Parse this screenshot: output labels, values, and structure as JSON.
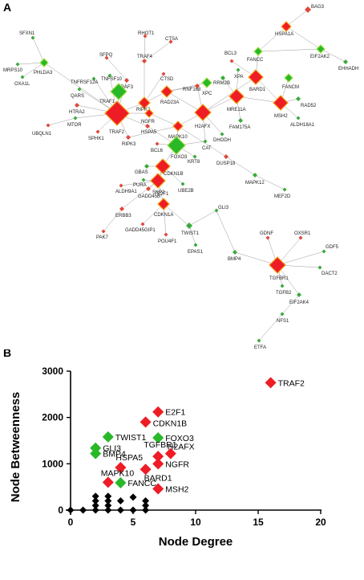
{
  "panels": {
    "a_letter": "A",
    "b_letter": "B"
  },
  "colors": {
    "red": "#ee1c25",
    "green": "#28b828",
    "black": "#000000",
    "red_border": "#f6a21a",
    "green_border": "#a6e34c",
    "small_red": "#e0463a",
    "small_green": "#3aaa3a",
    "edge": "#9a9a9a"
  },
  "network": {
    "nodes": [
      {
        "id": "BAG3",
        "color": "red"
      },
      {
        "id": "HSPA1A",
        "color": "red"
      },
      {
        "id": "EIF2AK2",
        "color": "green"
      },
      {
        "id": "EHHADH",
        "color": "green"
      },
      {
        "id": "SFXN1",
        "color": "green"
      },
      {
        "id": "MRPS10",
        "color": "green"
      },
      {
        "id": "PHLDA3",
        "color": "green"
      },
      {
        "id": "OXA1L",
        "color": "green"
      },
      {
        "id": "RHOT1",
        "color": "red"
      },
      {
        "id": "CTSA",
        "color": "red"
      },
      {
        "id": "TRAF4",
        "color": "red"
      },
      {
        "id": "CTSD",
        "color": "red"
      },
      {
        "id": "SFPQ",
        "color": "red"
      },
      {
        "id": "TNFSF10",
        "color": "green"
      },
      {
        "id": "TNFRSF12A",
        "color": "green"
      },
      {
        "id": "QARS",
        "color": "green"
      },
      {
        "id": "TRAF3",
        "color": "red"
      },
      {
        "id": "TRAF1",
        "color": "green"
      },
      {
        "id": "RIPK2",
        "color": "red"
      },
      {
        "id": "RAD23A",
        "color": "red"
      },
      {
        "id": "RNF168",
        "color": "red"
      },
      {
        "id": "BCL3",
        "color": "red"
      },
      {
        "id": "FANCC",
        "color": "green"
      },
      {
        "id": "XPA",
        "color": "green"
      },
      {
        "id": "RRM2B",
        "color": "green"
      },
      {
        "id": "XPC",
        "color": "green"
      },
      {
        "id": "BARD1",
        "color": "red"
      },
      {
        "id": "FANCM",
        "color": "green"
      },
      {
        "id": "MSH2",
        "color": "red"
      },
      {
        "id": "RAD52",
        "color": "green"
      },
      {
        "id": "MRE11A",
        "color": "red"
      },
      {
        "id": "ALDH18A1",
        "color": "green"
      },
      {
        "id": "FAM175A",
        "color": "green"
      },
      {
        "id": "HTRA2",
        "color": "red"
      },
      {
        "id": "MTOR",
        "color": "green"
      },
      {
        "id": "UBQLN1",
        "color": "red"
      },
      {
        "id": "TRAF2",
        "color": "red"
      },
      {
        "id": "NGFR",
        "color": "red"
      },
      {
        "id": "H2AFX",
        "color": "red"
      },
      {
        "id": "SPHK1",
        "color": "red"
      },
      {
        "id": "HSPA5",
        "color": "red"
      },
      {
        "id": "RIPK3",
        "color": "red"
      },
      {
        "id": "MAPK10",
        "color": "red"
      },
      {
        "id": "DHODH",
        "color": "green"
      },
      {
        "id": "CAT",
        "color": "green"
      },
      {
        "id": "BCL6",
        "color": "red"
      },
      {
        "id": "FOXO3",
        "color": "green"
      },
      {
        "id": "KRT8",
        "color": "green"
      },
      {
        "id": "DUSP18",
        "color": "red"
      },
      {
        "id": "GBAS",
        "color": "green"
      },
      {
        "id": "CDKN1B",
        "color": "red"
      },
      {
        "id": "PURA",
        "color": "green"
      },
      {
        "id": "SKP2",
        "color": "red"
      },
      {
        "id": "UBE2B",
        "color": "green"
      },
      {
        "id": "MAPK12",
        "color": "green"
      },
      {
        "id": "ALDH9A1",
        "color": "red"
      },
      {
        "id": "GADD45B",
        "color": "red"
      },
      {
        "id": "E2F1",
        "color": "red"
      },
      {
        "id": "MEF2D",
        "color": "green"
      },
      {
        "id": "ERBB3",
        "color": "red"
      },
      {
        "id": "CDKN1A",
        "color": "red"
      },
      {
        "id": "GADD45GIP1",
        "color": "red"
      },
      {
        "id": "GLI3",
        "color": "green"
      },
      {
        "id": "TWIST1",
        "color": "green"
      },
      {
        "id": "PAK7",
        "color": "red"
      },
      {
        "id": "POU4F1",
        "color": "red"
      },
      {
        "id": "EPAS1",
        "color": "green"
      },
      {
        "id": "GDNF",
        "color": "red"
      },
      {
        "id": "OXSR1",
        "color": "red"
      },
      {
        "id": "BMP4",
        "color": "green"
      },
      {
        "id": "GDF5",
        "color": "green"
      },
      {
        "id": "DACT2",
        "color": "green"
      },
      {
        "id": "TGFBR1",
        "color": "red"
      },
      {
        "id": "TGFB2",
        "color": "green"
      },
      {
        "id": "EIF2AK4",
        "color": "green"
      },
      {
        "id": "NFS1",
        "color": "green"
      },
      {
        "id": "ETFA",
        "color": "green"
      }
    ],
    "edges": [
      [
        "BAG3",
        "HSPA1A"
      ],
      [
        "HSPA1A",
        "FANCC"
      ],
      [
        "HSPA1A",
        "EIF2AK2"
      ],
      [
        "EIF2AK2",
        "EHHADH"
      ],
      [
        "EIF2AK2",
        "FANCC"
      ],
      [
        "SFXN1",
        "PHLDA3"
      ],
      [
        "MRPS10",
        "PHLDA3"
      ],
      [
        "PHLDA3",
        "OXA1L"
      ],
      [
        "PHLDA3",
        "TRAF2"
      ],
      [
        "RHOT1",
        "TRAF4"
      ],
      [
        "CTSA",
        "TRAF4"
      ],
      [
        "TRAF4",
        "RIPK2"
      ],
      [
        "CTSD",
        "RIPK2"
      ],
      [
        "SFPQ",
        "TRAF3"
      ],
      [
        "TNFSF10",
        "TRAF2"
      ],
      [
        "TNFRSF12A",
        "TRAF2"
      ],
      [
        "QARS",
        "TRAF2"
      ],
      [
        "TRAF3",
        "TRAF2"
      ],
      [
        "TRAF1",
        "TRAF2"
      ],
      [
        "RIPK2",
        "TRAF2"
      ],
      [
        "RIPK2",
        "RAD23A"
      ],
      [
        "RAD23A",
        "RNF168"
      ],
      [
        "RAD23A",
        "H2AFX"
      ],
      [
        "RNF168",
        "H2AFX"
      ],
      [
        "BCL3",
        "BARD1"
      ],
      [
        "FANCC",
        "BARD1"
      ],
      [
        "XPA",
        "MRE11A"
      ],
      [
        "RRM2B",
        "MRE11A"
      ],
      [
        "XPC",
        "RAD23A"
      ],
      [
        "BARD1",
        "MSH2"
      ],
      [
        "BARD1",
        "H2AFX"
      ],
      [
        "FANCM",
        "MSH2"
      ],
      [
        "MSH2",
        "RAD52"
      ],
      [
        "MSH2",
        "MRE11A"
      ],
      [
        "MRE11A",
        "H2AFX"
      ],
      [
        "MSH2",
        "ALDH18A1"
      ],
      [
        "MRE11A",
        "FAM175A"
      ],
      [
        "H2AFX",
        "MAPK10"
      ],
      [
        "HTRA2",
        "TRAF2"
      ],
      [
        "MTOR",
        "TRAF2"
      ],
      [
        "UBQLN1",
        "MTOR"
      ],
      [
        "TRAF2",
        "NGFR"
      ],
      [
        "TRAF2",
        "SPHK1"
      ],
      [
        "TRAF2",
        "HSPA5"
      ],
      [
        "TRAF2",
        "RIPK3"
      ],
      [
        "NGFR",
        "MAPK10"
      ],
      [
        "HSPA5",
        "FOXO3"
      ],
      [
        "RIPK3",
        "MAPK10"
      ],
      [
        "MAPK10",
        "FOXO3"
      ],
      [
        "H2AFX",
        "DHODH"
      ],
      [
        "H2AFX",
        "CAT"
      ],
      [
        "FOXO3",
        "CAT"
      ],
      [
        "BCL6",
        "FOXO3"
      ],
      [
        "FOXO3",
        "KRT8"
      ],
      [
        "FOXO3",
        "CDKN1B"
      ],
      [
        "DUSP18",
        "MAPK12"
      ],
      [
        "MAPK10",
        "DUSP18"
      ],
      [
        "GBAS",
        "CDKN1B"
      ],
      [
        "CDKN1B",
        "SKP2"
      ],
      [
        "CDKN1B",
        "UBE2B"
      ],
      [
        "CDKN1B",
        "E2F1"
      ],
      [
        "PURA",
        "E2F1"
      ],
      [
        "ALDH9A1",
        "E2F1"
      ],
      [
        "MAPK12",
        "MEF2D"
      ],
      [
        "GADD45B",
        "E2F1"
      ],
      [
        "E2F1",
        "CDKN1A"
      ],
      [
        "E2F1",
        "ERBB3"
      ],
      [
        "CDKN1A",
        "GADD45GIP1"
      ],
      [
        "CDKN1A",
        "POU4F1"
      ],
      [
        "ERBB3",
        "PAK7"
      ],
      [
        "CDKN1A",
        "TWIST1"
      ],
      [
        "TWIST1",
        "EPAS1"
      ],
      [
        "TWIST1",
        "GLI3"
      ],
      [
        "GLI3",
        "BMP4"
      ],
      [
        "BMP4",
        "TGFBR1"
      ],
      [
        "GDNF",
        "TGFBR1"
      ],
      [
        "OXSR1",
        "TGFBR1"
      ],
      [
        "GDF5",
        "TGFBR1"
      ],
      [
        "DACT2",
        "TGFBR1"
      ],
      [
        "TGFBR1",
        "TGFB2"
      ],
      [
        "TGFBR1",
        "EIF2AK4"
      ],
      [
        "EIF2AK4",
        "NFS1"
      ],
      [
        "NFS1",
        "ETFA"
      ]
    ]
  },
  "scatter": {
    "x_axis_label": "Node Degree",
    "y_axis_label": "Node Betweenness",
    "x_ticks": [
      "0",
      "5",
      "10",
      "15",
      "20"
    ],
    "y_ticks": [
      "0",
      "1000",
      "2000",
      "3000"
    ]
  },
  "chart_data": {
    "type": "scatter",
    "xlabel": "Node Degree",
    "ylabel": "Node Betweenness",
    "xlim": [
      0,
      20
    ],
    "ylim": [
      0,
      3000
    ],
    "xticks": [
      0,
      5,
      10,
      15,
      20
    ],
    "yticks": [
      0,
      1000,
      2000,
      3000
    ],
    "labeled_points": [
      {
        "label": "TRAF2",
        "x": 16,
        "y": 2750,
        "color": "red"
      },
      {
        "label": "E2F1",
        "x": 7,
        "y": 2120,
        "color": "red"
      },
      {
        "label": "CDKN1B",
        "x": 6,
        "y": 1900,
        "color": "red"
      },
      {
        "label": "TWIST1",
        "x": 3,
        "y": 1580,
        "color": "green"
      },
      {
        "label": "FOXO3",
        "x": 7,
        "y": 1560,
        "color": "green"
      },
      {
        "label": "GLI3",
        "x": 2,
        "y": 1340,
        "color": "green"
      },
      {
        "label": "BMP4",
        "x": 2,
        "y": 1220,
        "color": "green"
      },
      {
        "label": "TGFBR1",
        "x": 7,
        "y": 1160,
        "color": "red"
      },
      {
        "label": "H2AFX",
        "x": 8,
        "y": 1220,
        "color": "red"
      },
      {
        "label": "HSPA5",
        "x": 4,
        "y": 920,
        "color": "red"
      },
      {
        "label": "NGFR",
        "x": 7,
        "y": 1000,
        "color": "red"
      },
      {
        "label": "BARD1",
        "x": 6,
        "y": 880,
        "color": "red"
      },
      {
        "label": "MAPK10",
        "x": 3,
        "y": 600,
        "color": "red"
      },
      {
        "label": "FANCC",
        "x": 4,
        "y": 590,
        "color": "green"
      },
      {
        "label": "MSH2",
        "x": 7,
        "y": 460,
        "color": "red"
      }
    ],
    "unlabeled_points": [
      {
        "x": 0,
        "y": 0
      },
      {
        "x": 1,
        "y": 0
      },
      {
        "x": 2,
        "y": 0
      },
      {
        "x": 2,
        "y": 100
      },
      {
        "x": 2,
        "y": 200
      },
      {
        "x": 2,
        "y": 300
      },
      {
        "x": 3,
        "y": 0
      },
      {
        "x": 3,
        "y": 100
      },
      {
        "x": 3,
        "y": 200
      },
      {
        "x": 3,
        "y": 300
      },
      {
        "x": 4,
        "y": 0
      },
      {
        "x": 4,
        "y": 200
      },
      {
        "x": 5,
        "y": 0
      },
      {
        "x": 5,
        "y": 280
      },
      {
        "x": 6,
        "y": 0
      },
      {
        "x": 6,
        "y": 100
      },
      {
        "x": 6,
        "y": 200
      }
    ]
  }
}
